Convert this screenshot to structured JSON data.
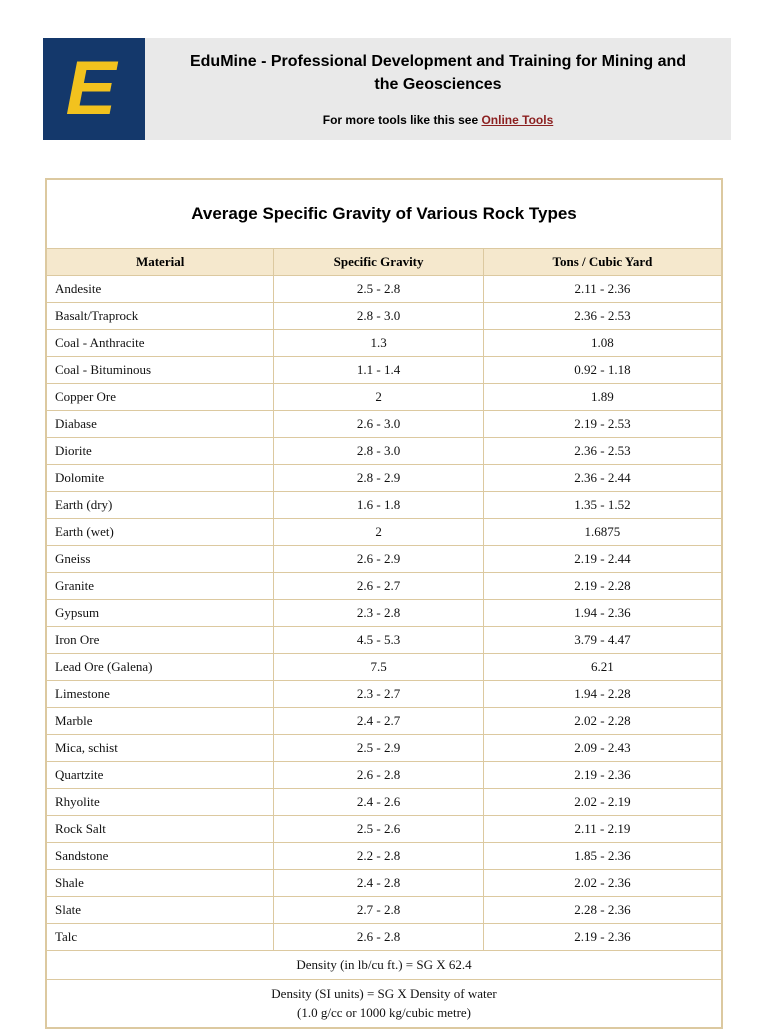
{
  "header": {
    "logo_letter": "E",
    "title": "EduMine - Professional Development and Training for Mining and the Geosciences",
    "subtitle_prefix": "For more tools like this see ",
    "link_label": "Online Tools"
  },
  "table": {
    "title": "Average Specific Gravity of Various Rock Types",
    "columns": [
      "Material",
      "Specific Gravity",
      "Tons / Cubic Yard"
    ],
    "rows": [
      [
        "Andesite",
        "2.5 - 2.8",
        "2.11 - 2.36"
      ],
      [
        "Basalt/Traprock",
        "2.8 - 3.0",
        "2.36 - 2.53"
      ],
      [
        "Coal - Anthracite",
        "1.3",
        "1.08"
      ],
      [
        "Coal - Bituminous",
        "1.1 - 1.4",
        "0.92 - 1.18"
      ],
      [
        "Copper Ore",
        "2",
        "1.89"
      ],
      [
        "Diabase",
        "2.6 - 3.0",
        "2.19 - 2.53"
      ],
      [
        "Diorite",
        "2.8 - 3.0",
        "2.36 - 2.53"
      ],
      [
        "Dolomite",
        "2.8 - 2.9",
        "2.36 - 2.44"
      ],
      [
        "Earth (dry)",
        "1.6 - 1.8",
        "1.35 - 1.52"
      ],
      [
        "Earth (wet)",
        "2",
        "1.6875"
      ],
      [
        "Gneiss",
        "2.6 - 2.9",
        "2.19 - 2.44"
      ],
      [
        "Granite",
        "2.6 - 2.7",
        "2.19 - 2.28"
      ],
      [
        "Gypsum",
        "2.3 - 2.8",
        "1.94 - 2.36"
      ],
      [
        "Iron Ore",
        "4.5 - 5.3",
        "3.79 - 4.47"
      ],
      [
        "Lead Ore (Galena)",
        "7.5",
        "6.21"
      ],
      [
        "Limestone",
        "2.3 - 2.7",
        "1.94 - 2.28"
      ],
      [
        "Marble",
        "2.4 - 2.7",
        "2.02 - 2.28"
      ],
      [
        "Mica, schist",
        "2.5 - 2.9",
        "2.09 - 2.43"
      ],
      [
        "Quartzite",
        "2.6 - 2.8",
        "2.19 - 2.36"
      ],
      [
        "Rhyolite",
        "2.4 - 2.6",
        "2.02 - 2.19"
      ],
      [
        "Rock Salt",
        "2.5 - 2.6",
        "2.11 - 2.19"
      ],
      [
        "Sandstone",
        "2.2 - 2.8",
        "1.85 - 2.36"
      ],
      [
        "Shale",
        "2.4 - 2.8",
        "2.02 - 2.36"
      ],
      [
        "Slate",
        "2.7 - 2.8",
        "2.28 - 2.36"
      ],
      [
        "Talc",
        "2.6 - 2.8",
        "2.19 - 2.36"
      ]
    ],
    "footnotes": {
      "imperial": "Density (in lb/cu ft.) = SG X 62.4",
      "si_line1": "Density (SI units) = SG X Density of water",
      "si_line2": "(1.0 g/cc or 1000 kg/cubic metre)"
    }
  },
  "colors": {
    "header_bar_bg": "#e9e9e9",
    "logo_bg": "#14386b",
    "logo_letter": "#f2c21e",
    "link": "#8b1f1f",
    "table_border": "#dcc9a0",
    "header_row_bg": "#f5e8cd"
  }
}
